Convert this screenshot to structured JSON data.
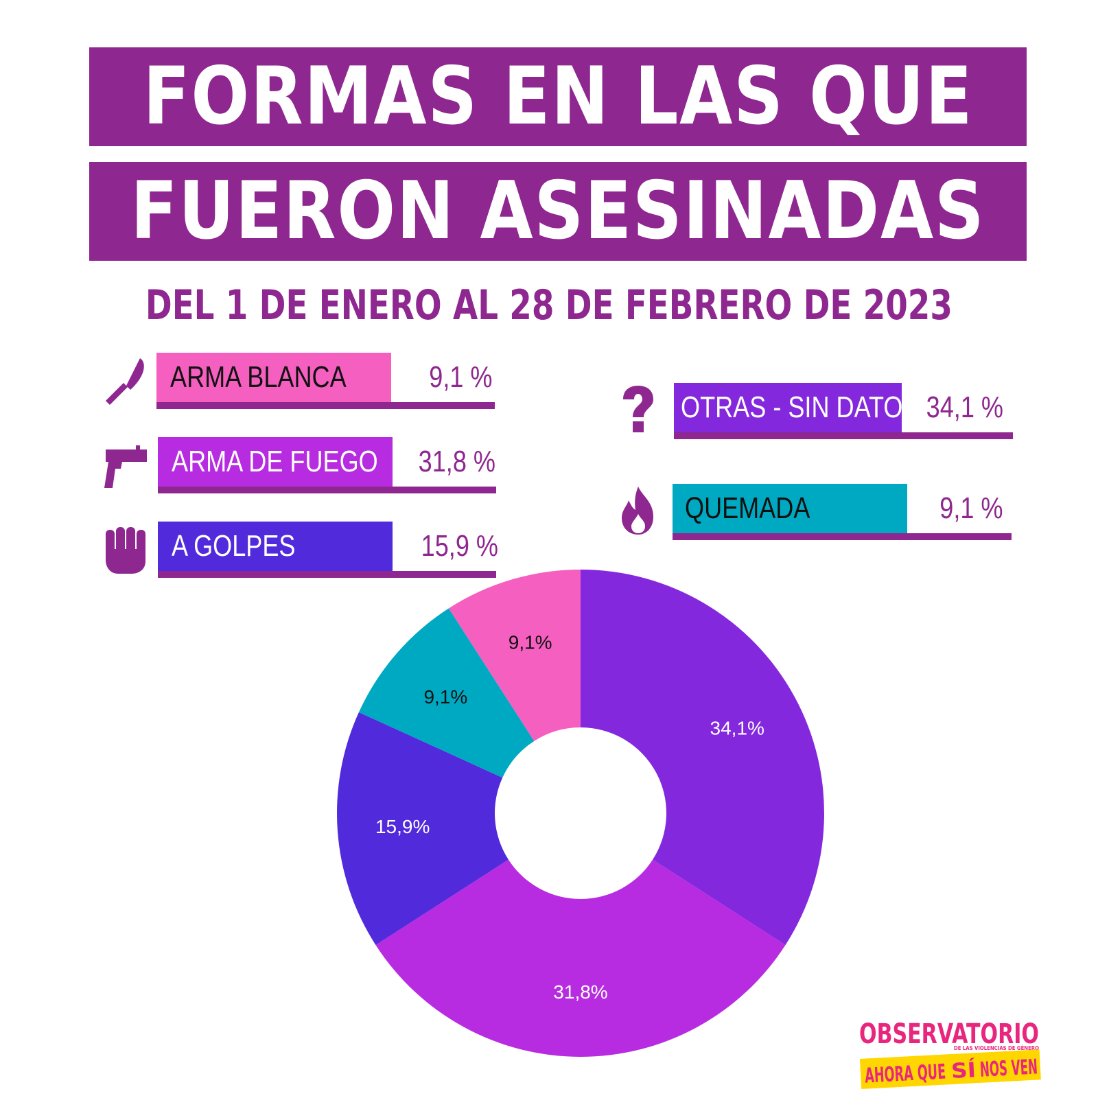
{
  "title": {
    "line1": "FORMAS EN LAS QUE",
    "line2": "FUERON ASESINADAS"
  },
  "subtitle": "DEL 1 DE ENERO AL 28 DE FEBRERO DE 2023",
  "legend": [
    {
      "label": "ARMA BLANCA",
      "pct": "9,1 %",
      "icon": "knife-icon",
      "color": "#f55fc0",
      "text_color": "#111111"
    },
    {
      "label": "ARMA DE FUEGO",
      "pct": "31,8 %",
      "icon": "gun-icon",
      "color": "#b72ce0",
      "text_color": "#ffffff"
    },
    {
      "label": "A GOLPES",
      "pct": "15,9 %",
      "icon": "fist-icon",
      "color": "#512adb",
      "text_color": "#ffffff"
    },
    {
      "label": "OTRAS - SIN DATOS",
      "pct": "34,1 %",
      "icon": "question-icon",
      "color": "#8428de",
      "text_color": "#ffffff"
    },
    {
      "label": "QUEMADA",
      "pct": "9,1 %",
      "icon": "flame-icon",
      "color": "#00a9c2",
      "text_color": "#111111"
    }
  ],
  "chart_data": {
    "type": "pie",
    "donut": true,
    "slices": [
      {
        "label": "OTRAS - SIN DATOS",
        "value": 34.1,
        "display": "34,1%",
        "color": "#8428de",
        "label_color": "#ffffff"
      },
      {
        "label": "ARMA DE FUEGO",
        "value": 31.8,
        "display": "31,8%",
        "color": "#b72ce0",
        "label_color": "#ffffff"
      },
      {
        "label": "A GOLPES",
        "value": 15.9,
        "display": "15,9%",
        "color": "#512adb",
        "label_color": "#ffffff"
      },
      {
        "label": "QUEMADA",
        "value": 9.1,
        "display": "9,1%",
        "color": "#00a9c2",
        "label_color": "#111111"
      },
      {
        "label": "ARMA BLANCA",
        "value": 9.1,
        "display": "9,1%",
        "color": "#f55fc0",
        "label_color": "#111111"
      }
    ]
  },
  "logo": {
    "line1": "OBSERVATORIO",
    "tagline": "DE LAS VIOLENCIAS DE GÉNERO",
    "line2a": "AHORA QUE",
    "line2b": "SÍ",
    "line2c": "NOS VEN"
  },
  "colors": {
    "accent": "#8e278f",
    "logo_pink": "#e8267e",
    "logo_yellow": "#ffd600"
  }
}
